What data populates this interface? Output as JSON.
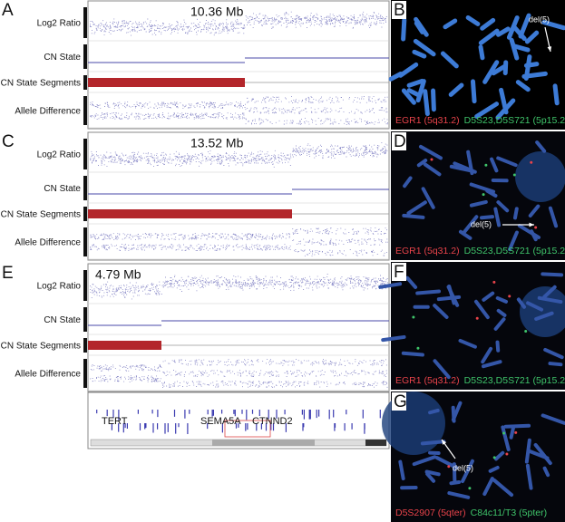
{
  "panels": [
    {
      "letter": "A",
      "size_label": "10.36 Mb",
      "tracks": [
        "Log2 Ratio",
        "CN State",
        "CN State Segments",
        "Allele Difference"
      ]
    },
    {
      "letter": "C",
      "size_label": "13.52 Mb",
      "tracks": [
        "Log2 Ratio",
        "CN State",
        "CN State Segments",
        "Allele Difference"
      ]
    },
    {
      "letter": "E",
      "size_label": "4.79 Mb",
      "tracks": [
        "Log2 Ratio",
        "CN State",
        "CN State Segments",
        "Allele Difference"
      ]
    }
  ],
  "genes": {
    "labels": [
      "TERT",
      "SEMA5A",
      "CTNND2"
    ]
  },
  "fish": [
    {
      "letter": "B",
      "arrow_label": "del(5)",
      "probes": [
        {
          "text": "EGR1 (5q31.2)",
          "color": "#e8434a"
        },
        {
          "text": "D5S23,D5S721 (5p15.2)",
          "color": "#3fc46a"
        }
      ]
    },
    {
      "letter": "D",
      "arrow_label": "del(5)",
      "probes": [
        {
          "text": "EGR1 (5q31.2)",
          "color": "#e8434a"
        },
        {
          "text": "D5S23,D5S721 (5p15.2)",
          "color": "#3fc46a"
        }
      ]
    },
    {
      "letter": "F",
      "probes": [
        {
          "text": "EGR1 (5q31.2)",
          "color": "#e8434a"
        },
        {
          "text": "D5S23,D5S721 (5p15.2)",
          "color": "#3fc46a"
        }
      ]
    },
    {
      "letter": "G",
      "arrow_label": "del(5)",
      "probes": [
        {
          "text": "D5S2907 (5qter)",
          "color": "#e8434a"
        },
        {
          "text": "C84c11/T3 (5pter)",
          "color": "#3fc46a"
        }
      ]
    }
  ]
}
